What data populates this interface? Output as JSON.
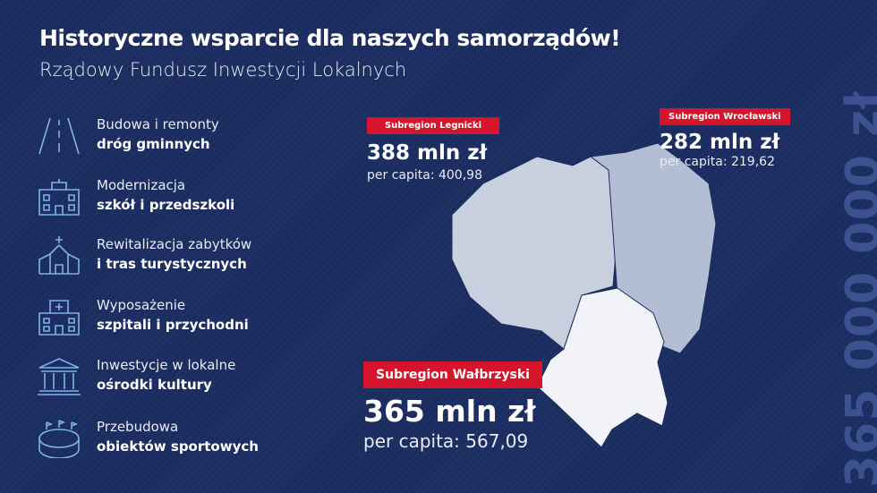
{
  "header": {
    "title": "Historyczne wsparcie dla naszych samorządów!",
    "subtitle": "Rządowy Fundusz Inwestycji Lokalnych"
  },
  "items": [
    {
      "line1": "Budowa i remonty",
      "line2": "dróg gminnych"
    },
    {
      "line1": "Modernizacja",
      "line2": "szkół i przedszkoli"
    },
    {
      "line1": "Rewitalizacja zabytków",
      "line2": "i tras turystycznych"
    },
    {
      "line1": "Wyposażenie",
      "line2": "szpitali i przychodni"
    },
    {
      "line1": "Inwestycje w lokalne",
      "line2": "ośrodki kultury"
    },
    {
      "line1": "Przebudowa",
      "line2": "obiektów sportowych"
    }
  ],
  "subregions": [
    {
      "name": "Subregion Legnicki",
      "amount": "388 mln zł",
      "per_capita": "per capita: 400,98"
    },
    {
      "name": "Subregion Wrocławski",
      "amount": "282 mln zł",
      "per_capita": "per capita: 219,62"
    },
    {
      "name": "Subregion Wałbrzyski",
      "amount": "365 mln zł",
      "per_capita": "per capita: 567,09"
    }
  ],
  "total": "365 000 000 zł"
}
